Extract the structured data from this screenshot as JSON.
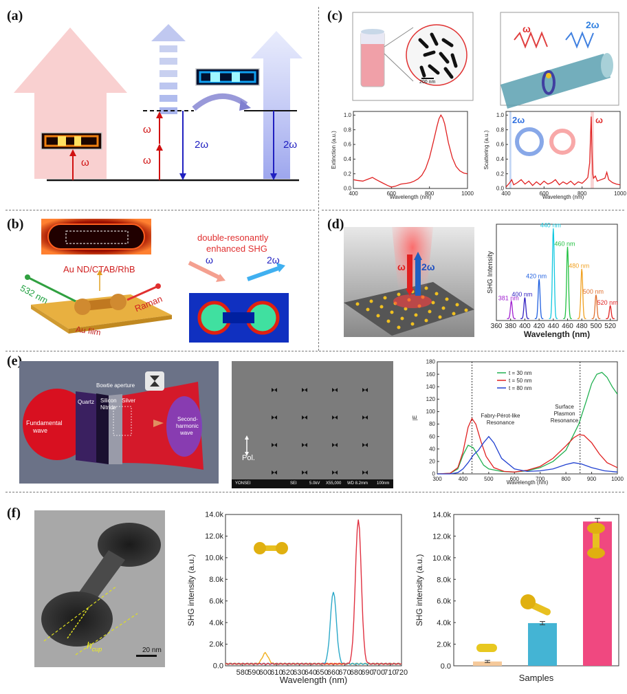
{
  "panels": {
    "a": {
      "label": "(a)",
      "omega": "ω",
      "two_omega": "2ω"
    },
    "b": {
      "label": "(b)",
      "laser": "532 nm",
      "sample": "Au ND/CTAB/RhB",
      "film": "Au film",
      "raman": "Raman",
      "title_line1": "double-resonantly",
      "title_line2": "enhanced SHG",
      "omega": "ω",
      "two_omega": "2ω"
    },
    "c": {
      "label": "(c)",
      "scale_bar": "200 nm",
      "omega": "ω",
      "two_omega": "2ω"
    },
    "d": {
      "label": "(d)",
      "omega": "ω",
      "two_omega": "2ω"
    },
    "e": {
      "label": "(e)",
      "fundamental": [
        "Fundamental",
        "wave"
      ],
      "quartz": "Quartz",
      "silicon_nitride": [
        "Silicon",
        "Nitride"
      ],
      "silver": "Silver",
      "bowtie": "Bowtie aperture",
      "second_harmonic": [
        "Second-",
        "harmonic",
        "wave"
      ],
      "sem_footer": [
        "YONSEI",
        "SEI",
        "5.0kV",
        "X55,000",
        "WD 8.2mm",
        "100nm"
      ],
      "pol": "Pol."
    },
    "f": {
      "label": "(f)",
      "scale_bar": "20 nm",
      "hcup": "h",
      "hcup_sub": "cup"
    }
  },
  "chart_data": [
    {
      "id": "c-extinction",
      "type": "line",
      "xlabel": "Wavelength (nm)",
      "ylabel": "Extinction (a.u.)",
      "xlim": [
        400,
        1000
      ],
      "ylim": [
        0,
        1.05
      ],
      "xticks": [
        "400",
        "600",
        "800",
        "1000"
      ],
      "yticks": [
        "0.0",
        "0.2",
        "0.4",
        "0.6",
        "0.8",
        "1.0"
      ],
      "series": [
        {
          "color": "#e02020",
          "x": [
            400,
            420,
            450,
            480,
            500,
            520,
            550,
            580,
            600,
            620,
            650,
            680,
            700,
            720,
            740,
            760,
            780,
            800,
            820,
            840,
            850,
            860,
            870,
            880,
            900,
            920,
            940,
            960,
            980,
            1000
          ],
          "y": [
            0.12,
            0.11,
            0.1,
            0.13,
            0.15,
            0.12,
            0.08,
            0.04,
            0.02,
            0.03,
            0.06,
            0.07,
            0.08,
            0.1,
            0.13,
            0.18,
            0.27,
            0.42,
            0.63,
            0.85,
            0.95,
            1.0,
            0.96,
            0.88,
            0.62,
            0.42,
            0.3,
            0.24,
            0.21,
            0.2
          ]
        }
      ]
    },
    {
      "id": "c-scattering",
      "type": "line",
      "xlabel": "Wavelength (nm)",
      "ylabel": "Scattering (a.u.)",
      "xlim": [
        400,
        1000
      ],
      "ylim": [
        0,
        1.05
      ],
      "xticks": [
        "400",
        "600",
        "800",
        "1000"
      ],
      "yticks": [
        "0.0",
        "0.2",
        "0.4",
        "0.6",
        "0.8",
        "1.0"
      ],
      "annotations": [
        "2ω",
        "ω"
      ],
      "series": [
        {
          "color": "#e02020",
          "x": [
            400,
            420,
            430,
            440,
            460,
            480,
            500,
            520,
            540,
            560,
            580,
            600,
            620,
            640,
            660,
            680,
            700,
            720,
            740,
            760,
            780,
            800,
            820,
            830,
            840,
            848,
            852,
            856,
            860,
            870,
            880,
            900,
            920,
            930,
            940,
            960,
            980,
            1000
          ],
          "y": [
            0.02,
            0.08,
            0.12,
            0.05,
            0.08,
            0.12,
            0.06,
            0.1,
            0.04,
            0.09,
            0.05,
            0.1,
            0.06,
            0.08,
            0.12,
            0.05,
            0.09,
            0.06,
            0.1,
            0.05,
            0.09,
            0.07,
            0.12,
            0.15,
            0.35,
            0.98,
            0.5,
            0.2,
            0.14,
            0.17,
            0.1,
            0.12,
            0.14,
            0.22,
            0.12,
            0.08,
            0.06,
            0.05
          ]
        }
      ]
    },
    {
      "id": "d-shg",
      "type": "line",
      "xlabel": "Wavelength (nm)",
      "ylabel": "SHG Intensity",
      "xticks": [
        "360",
        "380",
        "400",
        "420",
        "440",
        "460",
        "480",
        "500",
        "520"
      ],
      "xlim": [
        360,
        530
      ],
      "series": [
        {
          "name": "381 nm",
          "color": "#a020d0",
          "peak": 381,
          "height": 0.19
        },
        {
          "name": "400 nm",
          "color": "#3020c0",
          "peak": 400,
          "height": 0.23
        },
        {
          "name": "420 nm",
          "color": "#2060e0",
          "peak": 420,
          "height": 0.43
        },
        {
          "name": "440 nm",
          "color": "#10c8e0",
          "peak": 440,
          "height": 0.98
        },
        {
          "name": "460 nm",
          "color": "#20c040",
          "peak": 460,
          "height": 0.78
        },
        {
          "name": "480 nm",
          "color": "#f0a020",
          "peak": 480,
          "height": 0.54
        },
        {
          "name": "500 nm",
          "color": "#e07030",
          "peak": 500,
          "height": 0.26
        },
        {
          "name": "520 nm",
          "color": "#e02020",
          "peak": 520,
          "height": 0.14
        }
      ]
    },
    {
      "id": "e-field",
      "type": "line",
      "xlabel": "Wavelength (nm)",
      "ylabel": "|E",
      "xlim": [
        300,
        1000
      ],
      "ylim": [
        0,
        180
      ],
      "xticks": [
        "300",
        "400",
        "500",
        "600",
        "700",
        "800",
        "900",
        "1000"
      ],
      "yticks": [
        "0",
        "20",
        "40",
        "60",
        "80",
        "100",
        "120",
        "140",
        "160",
        "180"
      ],
      "annotations": [
        "Fabry-Pérot-like",
        "Resonance",
        "Surface",
        "Plasmon",
        "Resonance"
      ],
      "series": [
        {
          "name": "t = 30 nm",
          "color": "#20b050",
          "x": [
            300,
            350,
            380,
            400,
            420,
            440,
            460,
            480,
            500,
            550,
            600,
            650,
            700,
            750,
            800,
            850,
            880,
            900,
            920,
            940,
            960,
            980,
            1000
          ],
          "y": [
            0,
            1,
            8,
            30,
            46,
            42,
            28,
            14,
            8,
            4,
            3,
            5,
            10,
            20,
            38,
            80,
            118,
            145,
            160,
            163,
            155,
            140,
            128
          ]
        },
        {
          "name": "t = 50 nm",
          "color": "#e02020",
          "x": [
            300,
            350,
            380,
            400,
            420,
            435,
            450,
            470,
            490,
            520,
            560,
            600,
            650,
            700,
            750,
            800,
            830,
            850,
            870,
            900,
            930,
            960,
            1000
          ],
          "y": [
            0,
            1,
            10,
            35,
            75,
            89,
            80,
            52,
            28,
            10,
            4,
            3,
            6,
            12,
            25,
            45,
            58,
            63,
            62,
            50,
            32,
            18,
            10
          ]
        },
        {
          "name": "t = 80 nm",
          "color": "#2040d0",
          "x": [
            300,
            350,
            380,
            400,
            420,
            440,
            460,
            480,
            500,
            520,
            550,
            600,
            650,
            700,
            750,
            800,
            830,
            860,
            900,
            950,
            1000
          ],
          "y": [
            0,
            0,
            2,
            8,
            18,
            30,
            38,
            50,
            60,
            50,
            25,
            8,
            4,
            5,
            8,
            15,
            18,
            16,
            10,
            5,
            3
          ]
        }
      ],
      "vlines": [
        435,
        855
      ]
    },
    {
      "id": "f-shg-spectrum",
      "type": "line",
      "xlabel": "Wavelength (nm)",
      "ylabel": "SHG intensity (a.u.)",
      "xlim": [
        565,
        720
      ],
      "ylim": [
        0,
        14000
      ],
      "xticks": [
        "580",
        "590",
        "600",
        "610",
        "620",
        "630",
        "640",
        "650",
        "660",
        "670",
        "680",
        "690",
        "700",
        "710",
        "720"
      ],
      "yticks": [
        "0.0",
        "2.0k",
        "4.0k",
        "6.0k",
        "8.0k",
        "10.0k",
        "12.0k",
        "14.0k"
      ],
      "series": [
        {
          "color": "#f0b020",
          "peak": 600,
          "height": 1000
        },
        {
          "color": "#2aa8c8",
          "peak": 660,
          "height": 6700
        },
        {
          "color": "#e03040",
          "peak": 682,
          "height": 13400
        }
      ]
    },
    {
      "id": "f-shg-bars",
      "type": "bar",
      "xlabel": "Samples",
      "ylabel": "SHG intensity (a.u.)",
      "ylim": [
        0,
        14000
      ],
      "yticks": [
        "0.0",
        "2.0k",
        "4.0k",
        "6.0k",
        "8.0k",
        "10.0k",
        "12.0k",
        "14.0k"
      ],
      "values": [
        400,
        3950,
        13350
      ],
      "errors": [
        100,
        150,
        300
      ],
      "colors": [
        "#f5c99a",
        "#44b4d4",
        "#f04880"
      ]
    }
  ]
}
